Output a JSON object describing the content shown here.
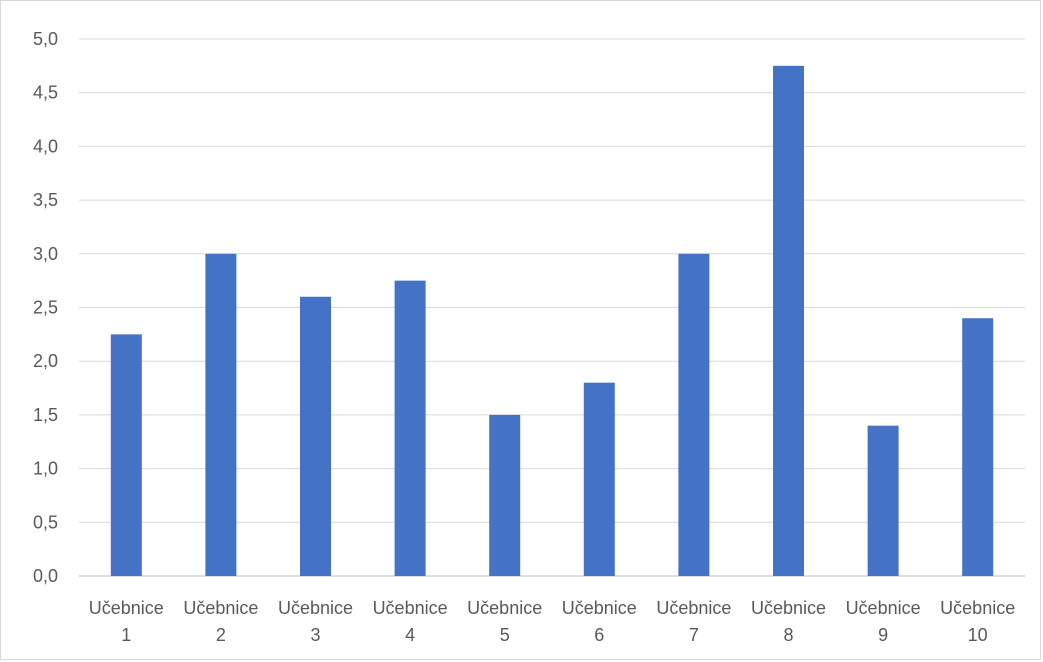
{
  "chart_data": {
    "type": "bar",
    "title": "",
    "xlabel": "",
    "ylabel": "",
    "categories": [
      [
        "Učebnice",
        "1"
      ],
      [
        "Učebnice",
        "2"
      ],
      [
        "Učebnice",
        "3"
      ],
      [
        "Učebnice",
        "4"
      ],
      [
        "Učebnice",
        "5"
      ],
      [
        "Učebnice",
        "6"
      ],
      [
        "Učebnice",
        "7"
      ],
      [
        "Učebnice",
        "8"
      ],
      [
        "Učebnice",
        "9"
      ],
      [
        "Učebnice",
        "10"
      ]
    ],
    "values": [
      2.25,
      3.0,
      2.6,
      2.75,
      1.5,
      1.8,
      3.0,
      4.75,
      1.4,
      2.4
    ],
    "ylim": [
      0,
      5
    ],
    "yticks": [
      0,
      0.5,
      1.0,
      1.5,
      2.0,
      2.5,
      3.0,
      3.5,
      4.0,
      4.5,
      5.0
    ],
    "ytick_labels": [
      "0,0",
      "0,5",
      "1,0",
      "1,5",
      "2,0",
      "2,5",
      "3,0",
      "3,5",
      "4,0",
      "4,5",
      "5,0"
    ],
    "grid": true,
    "legend": "none",
    "bar_color": "#4472c4",
    "grid_color": "#d9d9d9"
  }
}
